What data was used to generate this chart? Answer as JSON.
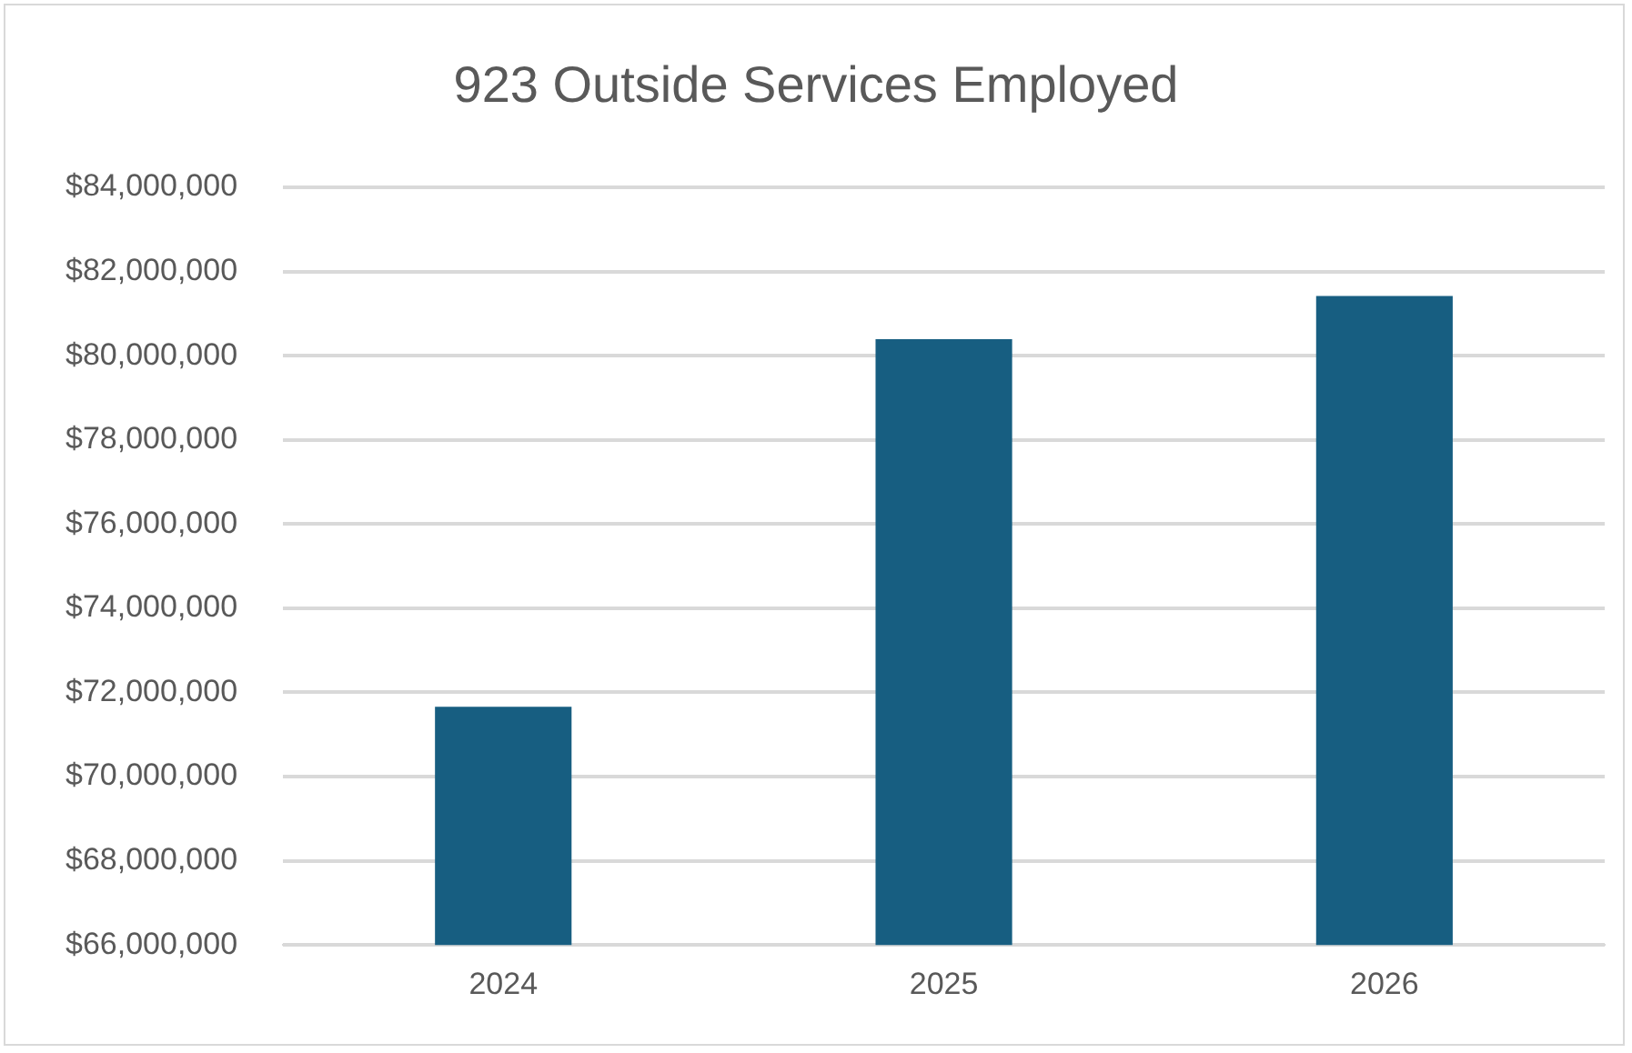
{
  "chart_data": {
    "type": "bar",
    "title": "923 Outside Services Employed",
    "categories": [
      "2024",
      "2025",
      "2026"
    ],
    "values": [
      71660000,
      80390000,
      81420000
    ],
    "color": "#175e81",
    "ylim": [
      66000000,
      84000000
    ],
    "yticks": [
      {
        "value": 66000000,
        "label": "$66,000,000"
      },
      {
        "value": 68000000,
        "label": "$68,000,000"
      },
      {
        "value": 70000000,
        "label": "$70,000,000"
      },
      {
        "value": 72000000,
        "label": "$72,000,000"
      },
      {
        "value": 74000000,
        "label": "$74,000,000"
      },
      {
        "value": 76000000,
        "label": "$76,000,000"
      },
      {
        "value": 78000000,
        "label": "$78,000,000"
      },
      {
        "value": 80000000,
        "label": "$80,000,000"
      },
      {
        "value": 82000000,
        "label": "$82,000,000"
      },
      {
        "value": 84000000,
        "label": "$84,000,000"
      }
    ],
    "grid": "y",
    "legend": false
  }
}
